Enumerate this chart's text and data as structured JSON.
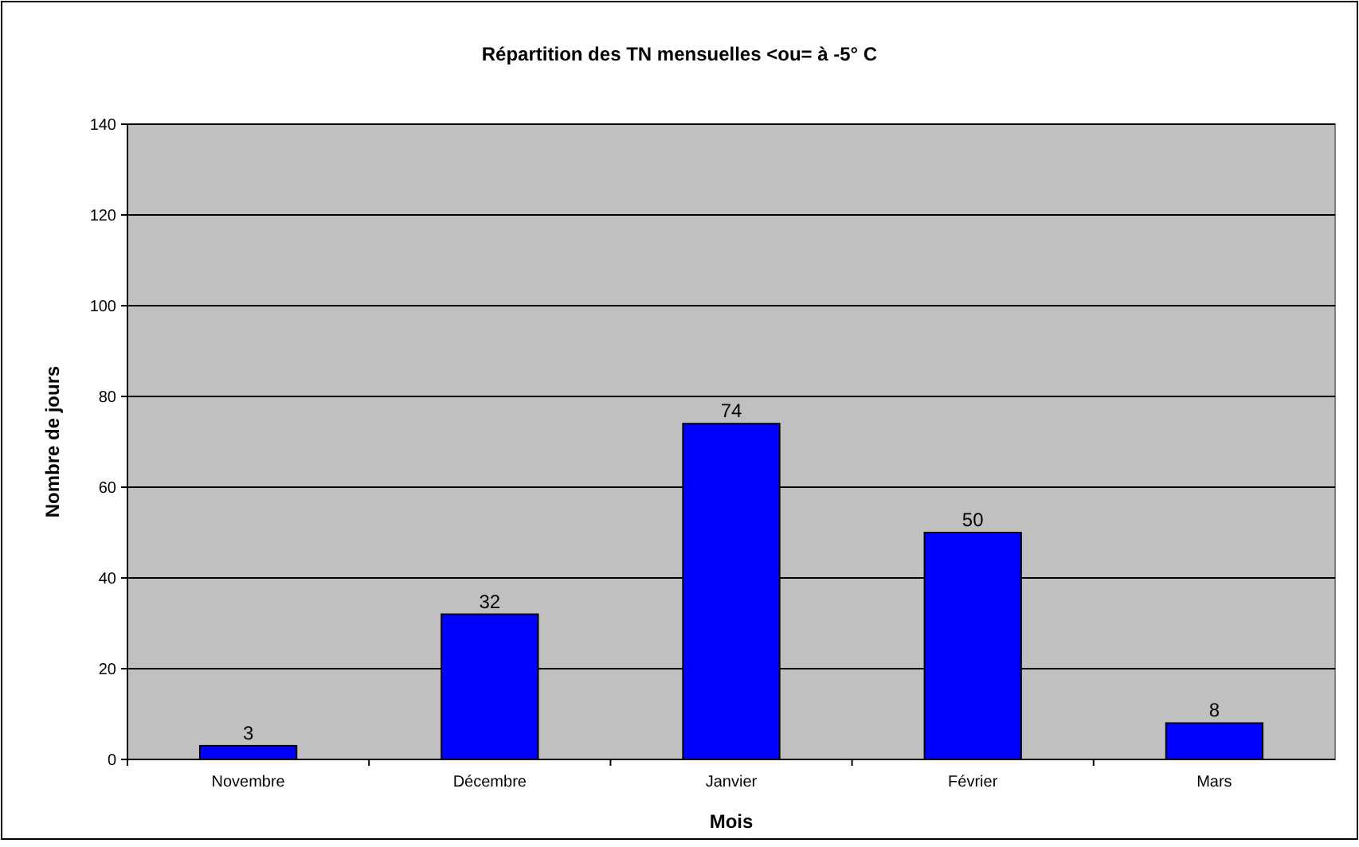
{
  "chart_data": {
    "type": "bar",
    "title": "Répartition des TN mensuelles <ou= à -5° C",
    "xlabel": "Mois",
    "ylabel": "Nombre de jours",
    "categories": [
      "Novembre",
      "Décembre",
      "Janvier",
      "Février",
      "Mars"
    ],
    "values": [
      3,
      32,
      74,
      50,
      8
    ],
    "color": "#0000ff",
    "ylim": [
      0,
      140
    ],
    "yticks": [
      0,
      20,
      40,
      60,
      80,
      100,
      120,
      140
    ],
    "grid": "y",
    "data_labels": true
  }
}
